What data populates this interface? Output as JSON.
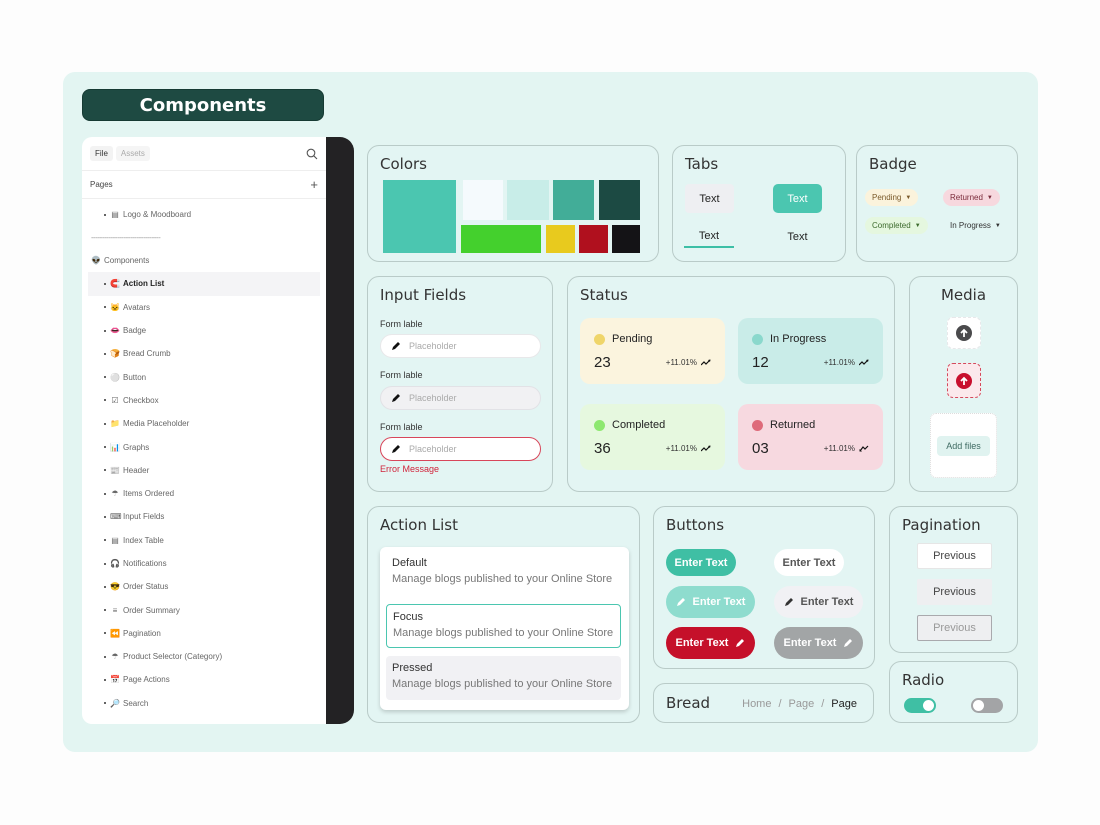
{
  "header": {
    "title": "Components"
  },
  "sidebar": {
    "tabs": [
      {
        "label": "File",
        "active": true
      },
      {
        "label": "Assets",
        "active": false
      }
    ],
    "search_icon": "search-icon",
    "pages_label": "Pages",
    "add_icon": "+",
    "top_item": {
      "emoji": "▤",
      "label": "Logo & Moodboard"
    },
    "separator": "--------------------------------",
    "section": {
      "emoji": "👽",
      "label": "Components"
    },
    "items": [
      {
        "emoji": "🧲",
        "label": "Action List",
        "selected": true
      },
      {
        "emoji": "🐱",
        "label": "Avatars"
      },
      {
        "emoji": "👄",
        "label": "Badge"
      },
      {
        "emoji": "🍞",
        "label": "Bread Crumb"
      },
      {
        "emoji": "⚪",
        "label": "Button"
      },
      {
        "emoji": "☑",
        "label": "Checkbox"
      },
      {
        "emoji": "📁",
        "label": "Media Placeholder"
      },
      {
        "emoji": "📊",
        "label": "Graphs"
      },
      {
        "emoji": "📰",
        "label": "Header"
      },
      {
        "emoji": "☂",
        "label": "Items Ordered"
      },
      {
        "emoji": "⌨",
        "label": "Input Fields"
      },
      {
        "emoji": "▤",
        "label": "Index Table"
      },
      {
        "emoji": "🎧",
        "label": "Notifications"
      },
      {
        "emoji": "😎",
        "label": "Order Status"
      },
      {
        "emoji": "≡",
        "label": "Order Summary"
      },
      {
        "emoji": "⏪",
        "label": "Pagination"
      },
      {
        "emoji": "☂",
        "label": "Product Selector (Category)"
      },
      {
        "emoji": "📅",
        "label": "Page Actions"
      },
      {
        "emoji": "🔎",
        "label": "Search"
      }
    ]
  },
  "colors": {
    "title": "Colors",
    "swatches": [
      "#4bc6b0",
      "#f5fafd",
      "#c8ede8",
      "#42ad98",
      "#1c4a43",
      "#44d02d",
      "#e8ca1e",
      "#b0101e",
      "#141316"
    ]
  },
  "tabs_card": {
    "title": "Tabs",
    "items": [
      "Text",
      "Text",
      "Text",
      "Text"
    ]
  },
  "badge_card": {
    "title": "Badge",
    "items": [
      {
        "label": "Pending",
        "bg": "#fbf3dc",
        "color": "#7a5a2a"
      },
      {
        "label": "Returned",
        "bg": "#f7d8de",
        "color": "#7a2a3a"
      },
      {
        "label": "Completed",
        "bg": "#e5f7df",
        "color": "#3d6b2d"
      },
      {
        "label": "In Progress",
        "bg": "transparent",
        "color": "#333"
      }
    ]
  },
  "input_fields": {
    "title": "Input Fields",
    "fields": [
      {
        "label": "Form lable",
        "placeholder": "Placeholder",
        "state": "default"
      },
      {
        "label": "Form lable",
        "placeholder": "Placeholder",
        "state": "disabled"
      },
      {
        "label": "Form lable",
        "placeholder": "Placeholder",
        "state": "error"
      }
    ],
    "error_message": "Error Message"
  },
  "status": {
    "title": "Status",
    "cards": [
      {
        "label": "Pending",
        "value": "23",
        "change": "+11.01%",
        "bg": "#fbf4de",
        "dot": "#efd56a",
        "trend": "up"
      },
      {
        "label": "In Progress",
        "value": "12",
        "change": "+11.01%",
        "bg": "#c9ece8",
        "dot": "#8ad8cc",
        "trend": "up"
      },
      {
        "label": "Completed",
        "value": "36",
        "change": "+11.01%",
        "bg": "#e6f8df",
        "dot": "#8de86f",
        "trend": "up"
      },
      {
        "label": "Returned",
        "value": "03",
        "change": "+11.01%",
        "bg": "#f7d9e0",
        "dot": "#de6a7a",
        "trend": "down"
      }
    ]
  },
  "media": {
    "title": "Media",
    "add_files": "Add files"
  },
  "action_list": {
    "title": "Action List",
    "items": [
      {
        "title": "Default",
        "desc": "Manage blogs published to your Online Store"
      },
      {
        "title": "Focus",
        "desc": "Manage blogs published to your Online Store"
      },
      {
        "title": "Pressed",
        "desc": "Manage blogs published to your Online Store"
      }
    ]
  },
  "buttons": {
    "title": "Buttons",
    "items": [
      "Enter Text",
      "Enter Text",
      "Enter Text",
      "Enter Text",
      "Enter Text",
      "Enter Text"
    ]
  },
  "breadcrumb": {
    "title": "Bread",
    "crumbs": [
      "Home",
      "/",
      "Page",
      "/",
      "Page"
    ]
  },
  "pagination": {
    "title": "Pagination",
    "items": [
      "Previous",
      "Previous",
      "Previous"
    ]
  },
  "radio": {
    "title": "Radio",
    "toggles": [
      {
        "on": true
      },
      {
        "on": false
      }
    ]
  }
}
